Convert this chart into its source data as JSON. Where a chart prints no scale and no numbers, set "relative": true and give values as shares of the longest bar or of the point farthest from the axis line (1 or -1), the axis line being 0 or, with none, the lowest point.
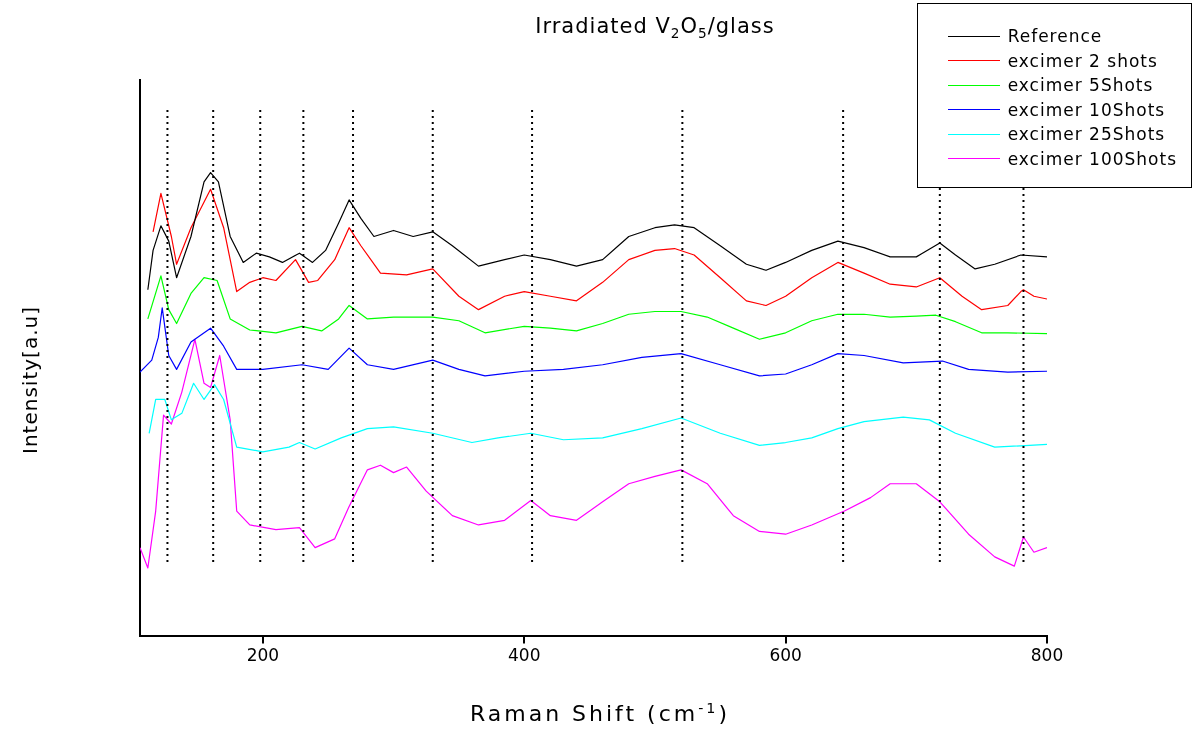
{
  "chart_data": {
    "type": "line",
    "title": "Irradiated V$_{2}$O$_{5}$/glass",
    "xlabel": "Raman Shift (cm$^{-1}$)",
    "ylabel": "Intensity[a.u]",
    "relative": true,
    "xlim": [
      106,
      800
    ],
    "xticks": [
      200,
      400,
      600,
      800
    ],
    "grid": false,
    "legend": "top right",
    "line_style": "solid",
    "series": [
      {
        "name": "Reference",
        "color": "#000000",
        "x": [
          112,
          116,
          122,
          128,
          134,
          145,
          155,
          160,
          166,
          175,
          185,
          195,
          205,
          215,
          228,
          238,
          248,
          258,
          266,
          275,
          285,
          300,
          315,
          330,
          345,
          365,
          385,
          400,
          420,
          440,
          460,
          480,
          500,
          515,
          530,
          550,
          570,
          585,
          600,
          620,
          640,
          660,
          680,
          700,
          718,
          730,
          745,
          760,
          780,
          800
        ],
        "values": [
          0.747,
          0.832,
          0.885,
          0.852,
          0.773,
          0.862,
          0.98,
          1.0,
          0.98,
          0.862,
          0.806,
          0.826,
          0.818,
          0.806,
          0.826,
          0.806,
          0.832,
          0.891,
          0.941,
          0.901,
          0.862,
          0.875,
          0.862,
          0.872,
          0.842,
          0.798,
          0.812,
          0.822,
          0.812,
          0.798,
          0.812,
          0.862,
          0.881,
          0.887,
          0.881,
          0.842,
          0.802,
          0.789,
          0.806,
          0.832,
          0.852,
          0.838,
          0.818,
          0.818,
          0.848,
          0.822,
          0.792,
          0.802,
          0.822,
          0.818
        ]
      },
      {
        "name": "excimer 2 shots",
        "color": "#ff0000",
        "x": [
          116,
          122,
          130,
          134,
          145,
          160,
          170,
          180,
          190,
          200,
          210,
          225,
          235,
          242,
          255,
          266,
          275,
          290,
          310,
          330,
          350,
          365,
          385,
          400,
          420,
          440,
          460,
          480,
          500,
          515,
          530,
          550,
          570,
          585,
          600,
          620,
          640,
          660,
          680,
          700,
          718,
          735,
          750,
          770,
          780,
          782,
          790,
          800
        ],
        "values": [
          0.872,
          0.955,
          0.862,
          0.802,
          0.881,
          0.964,
          0.881,
          0.743,
          0.763,
          0.773,
          0.767,
          0.812,
          0.763,
          0.767,
          0.812,
          0.881,
          0.842,
          0.783,
          0.779,
          0.792,
          0.733,
          0.704,
          0.733,
          0.743,
          0.733,
          0.723,
          0.763,
          0.812,
          0.832,
          0.836,
          0.822,
          0.773,
          0.723,
          0.713,
          0.733,
          0.773,
          0.806,
          0.783,
          0.759,
          0.753,
          0.773,
          0.733,
          0.704,
          0.713,
          0.743,
          0.747,
          0.733,
          0.727
        ]
      },
      {
        "name": "excimer 5Shots",
        "color": "#00ff00",
        "x": [
          112,
          122,
          128,
          134,
          145,
          155,
          165,
          175,
          190,
          210,
          230,
          245,
          258,
          266,
          280,
          300,
          330,
          350,
          370,
          400,
          420,
          440,
          460,
          480,
          500,
          520,
          540,
          560,
          580,
          600,
          620,
          640,
          660,
          680,
          700,
          715,
          730,
          750,
          770,
          800
        ],
        "values": [
          0.684,
          0.777,
          0.704,
          0.674,
          0.739,
          0.773,
          0.767,
          0.684,
          0.66,
          0.654,
          0.668,
          0.658,
          0.684,
          0.713,
          0.684,
          0.688,
          0.688,
          0.68,
          0.654,
          0.668,
          0.664,
          0.658,
          0.674,
          0.694,
          0.7,
          0.7,
          0.688,
          0.664,
          0.64,
          0.654,
          0.68,
          0.694,
          0.694,
          0.688,
          0.69,
          0.692,
          0.678,
          0.654,
          0.654,
          0.652
        ]
      },
      {
        "name": "excimer 10Shots",
        "color": "#0000ff",
        "x": [
          106,
          115,
          120,
          123,
          128,
          134,
          145,
          160,
          170,
          180,
          200,
          230,
          250,
          266,
          280,
          300,
          330,
          350,
          370,
          400,
          430,
          460,
          490,
          520,
          550,
          580,
          600,
          620,
          640,
          660,
          690,
          720,
          740,
          770,
          800
        ],
        "values": [
          0.569,
          0.595,
          0.644,
          0.708,
          0.605,
          0.575,
          0.634,
          0.664,
          0.625,
          0.575,
          0.575,
          0.585,
          0.575,
          0.621,
          0.585,
          0.575,
          0.595,
          0.575,
          0.561,
          0.571,
          0.575,
          0.585,
          0.601,
          0.609,
          0.585,
          0.561,
          0.565,
          0.585,
          0.609,
          0.605,
          0.589,
          0.593,
          0.575,
          0.569,
          0.571
        ]
      },
      {
        "name": "excimer 25Shots",
        "color": "#00ffff",
        "x": [
          113,
          118,
          125,
          130,
          138,
          147,
          155,
          163,
          170,
          180,
          200,
          220,
          228,
          240,
          260,
          280,
          300,
          330,
          360,
          380,
          405,
          430,
          460,
          490,
          520,
          550,
          580,
          600,
          620,
          640,
          660,
          690,
          710,
          730,
          760,
          800
        ],
        "values": [
          0.437,
          0.51,
          0.51,
          0.466,
          0.48,
          0.545,
          0.51,
          0.542,
          0.51,
          0.407,
          0.397,
          0.407,
          0.417,
          0.403,
          0.427,
          0.447,
          0.451,
          0.437,
          0.417,
          0.427,
          0.437,
          0.423,
          0.427,
          0.447,
          0.47,
          0.437,
          0.411,
          0.417,
          0.427,
          0.447,
          0.462,
          0.472,
          0.466,
          0.437,
          0.407,
          0.413
        ]
      },
      {
        "name": "excimer 100Shots",
        "color": "#ff00ff",
        "x": [
          106,
          112,
          118,
          124,
          130,
          138,
          148,
          155,
          160,
          167,
          175,
          180,
          190,
          210,
          228,
          240,
          255,
          266,
          280,
          290,
          300,
          310,
          325,
          345,
          365,
          385,
          405,
          420,
          440,
          460,
          480,
          500,
          520,
          540,
          560,
          580,
          600,
          620,
          645,
          665,
          680,
          700,
          718,
          740,
          760,
          775,
          782,
          790,
          800
        ],
        "values": [
          0.19,
          0.146,
          0.269,
          0.476,
          0.457,
          0.526,
          0.64,
          0.545,
          0.536,
          0.605,
          0.466,
          0.269,
          0.239,
          0.229,
          0.233,
          0.19,
          0.209,
          0.279,
          0.358,
          0.368,
          0.352,
          0.364,
          0.312,
          0.259,
          0.239,
          0.249,
          0.292,
          0.259,
          0.249,
          0.289,
          0.328,
          0.344,
          0.358,
          0.328,
          0.259,
          0.225,
          0.219,
          0.239,
          0.269,
          0.298,
          0.328,
          0.328,
          0.289,
          0.219,
          0.17,
          0.15,
          0.213,
          0.18,
          0.19
        ]
      }
    ],
    "ref_lines": [
      {
        "axis": "x",
        "value": 127,
        "line_style": "dotted",
        "color": "#000000"
      },
      {
        "axis": "x",
        "value": 162,
        "line_style": "dotted",
        "color": "#000000"
      },
      {
        "axis": "x",
        "value": 198,
        "line_style": "dotted",
        "color": "#000000"
      },
      {
        "axis": "x",
        "value": 231,
        "line_style": "dotted",
        "color": "#000000"
      },
      {
        "axis": "x",
        "value": 269,
        "line_style": "dotted",
        "color": "#000000"
      },
      {
        "axis": "x",
        "value": 330,
        "line_style": "dotted",
        "color": "#000000"
      },
      {
        "axis": "x",
        "value": 406,
        "line_style": "dotted",
        "color": "#000000"
      },
      {
        "axis": "x",
        "value": 521,
        "line_style": "dotted",
        "color": "#000000"
      },
      {
        "axis": "x",
        "value": 644,
        "line_style": "dotted",
        "color": "#000000"
      },
      {
        "axis": "x",
        "value": 718,
        "line_style": "dotted",
        "color": "#000000"
      },
      {
        "axis": "x",
        "value": 782,
        "line_style": "dotted",
        "color": "#000000"
      }
    ]
  }
}
